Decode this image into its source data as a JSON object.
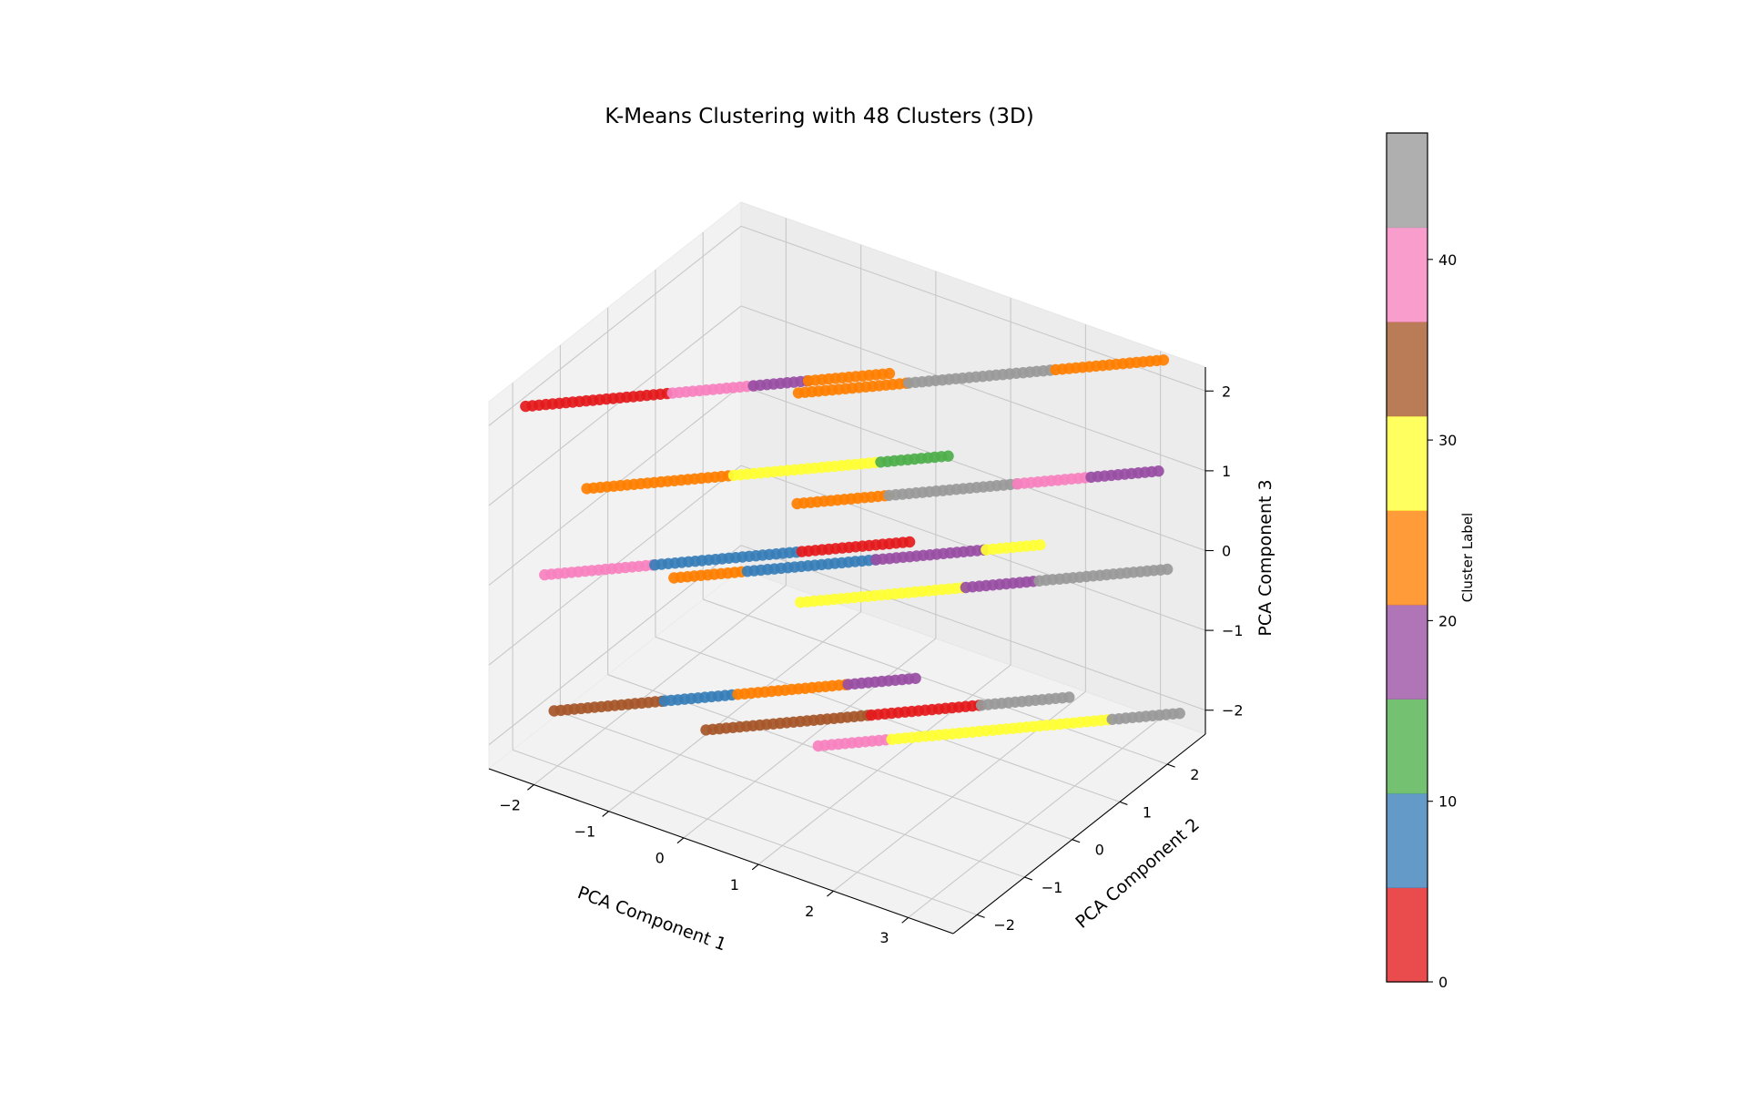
{
  "chart_data": {
    "type": "scatter",
    "projection": "3d",
    "title": "K-Means Clustering with 48 Clusters (3D)",
    "xlabel": "PCA Component 1",
    "ylabel": "PCA Component 2",
    "zlabel": "PCA Component 3",
    "xlim": [
      -2.6,
      3.6
    ],
    "ylim": [
      -2.5,
      2.8
    ],
    "zlim": [
      -2.3,
      2.3
    ],
    "x_ticks": [
      "−2",
      "−1",
      "0",
      "1",
      "2",
      "3"
    ],
    "y_ticks": [
      "−2",
      "−1",
      "0",
      "1",
      "2"
    ],
    "z_ticks": [
      "−2",
      "−1",
      "0",
      "1",
      "2"
    ],
    "grid": true,
    "n_clusters": 48,
    "colormap": "Set1",
    "colorbar": {
      "label": "Cluster Label",
      "range": [
        0,
        47
      ],
      "ticks": [
        "0",
        "10",
        "20",
        "30",
        "40"
      ],
      "colors": [
        "#e41a1c",
        "#377eb8",
        "#4daf4a",
        "#984ea3",
        "#ff7f00",
        "#ffff33",
        "#a65628",
        "#f781bf",
        "#999999"
      ]
    },
    "streaks": [
      {
        "from": [
          -2.3,
          -2.2,
          2.2
        ],
        "to": [
          0.7,
          0.8,
          2.2
        ],
        "segments": [
          [
            "#e41a1c",
            0.4
          ],
          [
            "#f781bf",
            0.22
          ],
          [
            "#984ea3",
            0.15
          ],
          [
            "#ff7f00",
            0.23
          ]
        ]
      },
      {
        "from": [
          -2.3,
          -1.8,
          -0.1
        ],
        "to": [
          0.7,
          1.2,
          -0.1
        ],
        "segments": [
          [
            "#f781bf",
            0.3
          ],
          [
            "#377eb8",
            0.4
          ],
          [
            "#e41a1c",
            0.3
          ]
        ]
      },
      {
        "from": [
          -2.3,
          -1.6,
          -1.9
        ],
        "to": [
          0.7,
          1.4,
          -1.9
        ],
        "segments": [
          [
            "#a65628",
            0.3
          ],
          [
            "#377eb8",
            0.2
          ],
          [
            "#ff7f00",
            0.3
          ],
          [
            "#984ea3",
            0.2
          ]
        ]
      },
      {
        "from": [
          -1.8,
          -1.7,
          1.1
        ],
        "to": [
          1.2,
          1.3,
          1.1
        ],
        "segments": [
          [
            "#ff7f00",
            0.4
          ],
          [
            "#ffff33",
            0.4
          ],
          [
            "#4daf4a",
            0.2
          ]
        ]
      },
      {
        "from": [
          -0.7,
          -1.6,
          0.3
        ],
        "to": [
          2.3,
          1.4,
          0.3
        ],
        "segments": [
          [
            "#ff7f00",
            0.2
          ],
          [
            "#377eb8",
            0.35
          ],
          [
            "#984ea3",
            0.3
          ],
          [
            "#ffff33",
            0.15
          ]
        ]
      },
      {
        "from": [
          -0.4,
          -1.4,
          -1.6
        ],
        "to": [
          2.6,
          1.6,
          -1.6
        ],
        "segments": [
          [
            "#a65628",
            0.45
          ],
          [
            "#e41a1c",
            0.3
          ],
          [
            "#999999",
            0.25
          ]
        ]
      },
      {
        "from": [
          0.1,
          -0.2,
          -0.4
        ],
        "to": [
          3.1,
          2.8,
          -0.4
        ],
        "segments": [
          [
            "#ffff33",
            0.45
          ],
          [
            "#984ea3",
            0.2
          ],
          [
            "#999999",
            0.35
          ]
        ]
      },
      {
        "from": [
          0.5,
          -0.9,
          1.3
        ],
        "to": [
          3.5,
          2.1,
          1.3
        ],
        "segments": [
          [
            "#ff7f00",
            0.25
          ],
          [
            "#999999",
            0.35
          ],
          [
            "#f781bf",
            0.2
          ],
          [
            "#984ea3",
            0.2
          ]
        ]
      },
      {
        "from": [
          -0.5,
          0.7,
          1.6
        ],
        "to": [
          2.5,
          3.7,
          1.6
        ],
        "segments": [
          [
            "#ff7f00",
            0.3
          ],
          [
            "#999999",
            0.4
          ],
          [
            "#ff7f00",
            0.3
          ]
        ]
      },
      {
        "from": [
          1.1,
          -1.4,
          -1.3
        ],
        "to": [
          4.1,
          1.6,
          -1.3
        ],
        "segments": [
          [
            "#f781bf",
            0.2
          ],
          [
            "#ffff33",
            0.6
          ],
          [
            "#999999",
            0.2
          ]
        ]
      }
    ]
  }
}
